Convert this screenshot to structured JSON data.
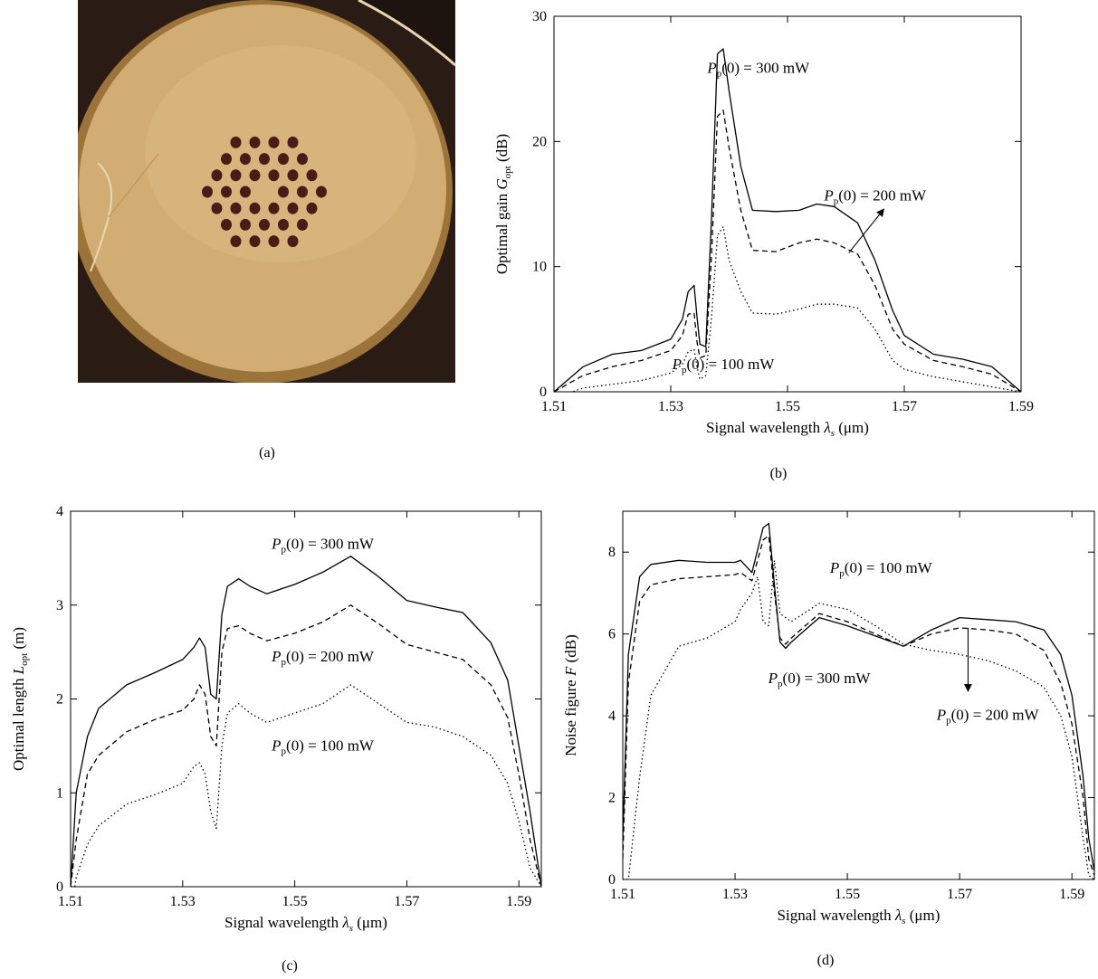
{
  "panels": {
    "a": {
      "label": "(a)"
    },
    "b": {
      "label": "(b)"
    },
    "c": {
      "label": "(c)"
    },
    "d": {
      "label": "(d)"
    }
  },
  "colors": {
    "fiber_face": "#d2ad73",
    "fiber_edge": "#9c7439",
    "background_dark": "#2a1c14",
    "holes": "#4a1c18"
  },
  "chart_data": [
    {
      "panel": "b",
      "type": "line",
      "xlabel": "Signal wavelength λs (μm)",
      "ylabel": "Optimal gain Gopt (dB)",
      "xlim": [
        1.51,
        1.59
      ],
      "ylim": [
        0,
        30
      ],
      "xticks": [
        1.51,
        1.53,
        1.55,
        1.57,
        1.59
      ],
      "xtick_labels": [
        "1.51",
        "1.53",
        "1.55",
        "1.57",
        "1.59"
      ],
      "yticks": [
        0,
        10,
        20,
        30
      ],
      "ytick_labels": [
        "0",
        "10",
        "20",
        "30"
      ],
      "grid": false,
      "series": [
        {
          "name": "Pp(0) = 300 mW",
          "style": "solid",
          "x": [
            1.51,
            1.515,
            1.52,
            1.525,
            1.53,
            1.532,
            1.533,
            1.534,
            1.5345,
            1.535,
            1.536,
            1.537,
            1.538,
            1.539,
            1.54,
            1.542,
            1.544,
            1.548,
            1.552,
            1.555,
            1.558,
            1.562,
            1.565,
            1.568,
            1.57,
            1.575,
            1.58,
            1.585,
            1.59
          ],
          "y": [
            0,
            2.0,
            3.0,
            3.3,
            4.2,
            5.8,
            8.0,
            8.5,
            6.0,
            3.8,
            3.6,
            14.0,
            27.0,
            27.4,
            24.0,
            18.0,
            14.5,
            14.4,
            14.5,
            15.0,
            14.8,
            13.5,
            10.5,
            6.5,
            4.5,
            3.0,
            2.6,
            2.0,
            0
          ]
        },
        {
          "name": "Pp(0) = 200 mW",
          "style": "dashed",
          "x": [
            1.51,
            1.515,
            1.52,
            1.525,
            1.53,
            1.532,
            1.533,
            1.534,
            1.5345,
            1.535,
            1.536,
            1.537,
            1.538,
            1.539,
            1.54,
            1.542,
            1.544,
            1.548,
            1.552,
            1.555,
            1.558,
            1.562,
            1.565,
            1.568,
            1.57,
            1.575,
            1.58,
            1.585,
            1.59
          ],
          "y": [
            0,
            1.3,
            2.0,
            2.5,
            3.3,
            4.5,
            6.2,
            6.3,
            4.0,
            2.7,
            2.9,
            11.0,
            22.0,
            22.5,
            19.5,
            14.5,
            11.3,
            11.2,
            11.9,
            12.2,
            11.9,
            11.0,
            8.5,
            5.0,
            3.8,
            2.5,
            2.0,
            1.4,
            0
          ]
        },
        {
          "name": "Pp(0) = 100 mW",
          "style": "dotted",
          "x": [
            1.51,
            1.515,
            1.52,
            1.525,
            1.53,
            1.532,
            1.533,
            1.534,
            1.5345,
            1.535,
            1.536,
            1.537,
            1.538,
            1.539,
            1.54,
            1.542,
            1.544,
            1.548,
            1.552,
            1.555,
            1.558,
            1.562,
            1.565,
            1.568,
            1.57,
            1.575,
            1.58,
            1.585,
            1.59
          ],
          "y": [
            -0.5,
            0.3,
            0.6,
            0.9,
            1.5,
            2.2,
            3.2,
            3.4,
            2.0,
            1.0,
            1.3,
            6.0,
            12.5,
            13.2,
            10.5,
            8.0,
            6.3,
            6.2,
            6.6,
            7.0,
            7.0,
            6.7,
            5.0,
            2.5,
            1.8,
            1.2,
            0.8,
            0.4,
            0
          ]
        }
      ],
      "annotations": [
        {
          "text": "Pp(0) = 300 mW",
          "x": 1.545,
          "y": 25.5
        },
        {
          "text": "Pp(0) = 200 mW",
          "x": 1.565,
          "y": 15.3
        },
        {
          "text": "Pp(0) = 100 mW",
          "x": 1.539,
          "y": 1.8
        }
      ]
    },
    {
      "panel": "c",
      "type": "line",
      "xlabel": "Signal wavelength λs (μm)",
      "ylabel": "Optimal length Lopt (m)",
      "xlim": [
        1.51,
        1.594
      ],
      "ylim": [
        0,
        4
      ],
      "xticks": [
        1.51,
        1.53,
        1.55,
        1.57,
        1.59
      ],
      "xtick_labels": [
        "1.51",
        "1.53",
        "1.55",
        "1.57",
        "1.59"
      ],
      "yticks": [
        0,
        1,
        2,
        3,
        4
      ],
      "ytick_labels": [
        "0",
        "1",
        "2",
        "3",
        "4"
      ],
      "grid": false,
      "series": [
        {
          "name": "Pp(0) = 300 mW",
          "style": "solid",
          "x": [
            1.51,
            1.511,
            1.513,
            1.515,
            1.52,
            1.525,
            1.53,
            1.532,
            1.533,
            1.534,
            1.535,
            1.536,
            1.537,
            1.538,
            1.54,
            1.542,
            1.545,
            1.55,
            1.555,
            1.56,
            1.565,
            1.57,
            1.575,
            1.58,
            1.585,
            1.588,
            1.59,
            1.592,
            1.594
          ],
          "y": [
            0,
            1.0,
            1.6,
            1.9,
            2.15,
            2.28,
            2.42,
            2.55,
            2.65,
            2.55,
            2.05,
            2.0,
            2.9,
            3.2,
            3.28,
            3.2,
            3.12,
            3.22,
            3.35,
            3.52,
            3.3,
            3.05,
            2.98,
            2.92,
            2.6,
            2.2,
            1.5,
            0.8,
            0
          ]
        },
        {
          "name": "Pp(0) = 200 mW",
          "style": "dashed",
          "x": [
            1.51,
            1.511,
            1.513,
            1.515,
            1.52,
            1.525,
            1.53,
            1.532,
            1.533,
            1.534,
            1.535,
            1.536,
            1.537,
            1.538,
            1.54,
            1.542,
            1.545,
            1.55,
            1.555,
            1.56,
            1.565,
            1.57,
            1.575,
            1.58,
            1.585,
            1.588,
            1.59,
            1.592,
            1.594
          ],
          "y": [
            0,
            0.5,
            1.2,
            1.4,
            1.65,
            1.78,
            1.88,
            2.0,
            2.15,
            2.05,
            1.6,
            1.5,
            2.5,
            2.75,
            2.78,
            2.7,
            2.62,
            2.7,
            2.82,
            3.0,
            2.8,
            2.58,
            2.5,
            2.42,
            2.15,
            1.8,
            1.2,
            0.5,
            0
          ]
        },
        {
          "name": "Pp(0) = 100 mW",
          "style": "dotted",
          "x": [
            1.51,
            1.511,
            1.513,
            1.515,
            1.52,
            1.525,
            1.53,
            1.532,
            1.533,
            1.534,
            1.535,
            1.536,
            1.537,
            1.538,
            1.54,
            1.542,
            1.545,
            1.55,
            1.555,
            1.56,
            1.565,
            1.57,
            1.575,
            1.58,
            1.585,
            1.588,
            1.59,
            1.592,
            1.594
          ],
          "y": [
            -0.3,
            0.1,
            0.45,
            0.65,
            0.88,
            0.98,
            1.1,
            1.28,
            1.32,
            1.2,
            0.8,
            0.62,
            1.5,
            1.85,
            1.95,
            1.85,
            1.75,
            1.85,
            1.95,
            2.15,
            1.95,
            1.75,
            1.7,
            1.6,
            1.4,
            1.1,
            0.7,
            0.2,
            0
          ]
        }
      ],
      "annotations": [
        {
          "text": "Pp(0) = 300 mW",
          "x": 1.555,
          "y": 3.6
        },
        {
          "text": "Pp(0) = 200 mW",
          "x": 1.555,
          "y": 2.4
        },
        {
          "text": "Pp(0) = 100 mW",
          "x": 1.555,
          "y": 1.45
        }
      ]
    },
    {
      "panel": "d",
      "type": "line",
      "xlabel": "Signal wavelength λs (μm)",
      "ylabel": "Noise figure F (dB)",
      "xlim": [
        1.51,
        1.594
      ],
      "ylim": [
        0,
        9
      ],
      "xticks": [
        1.51,
        1.53,
        1.55,
        1.57,
        1.59
      ],
      "xtick_labels": [
        "1.51",
        "1.53",
        "1.55",
        "1.57",
        "1.59"
      ],
      "yticks": [
        0,
        2,
        4,
        6,
        8
      ],
      "ytick_labels": [
        "0",
        "2",
        "4",
        "6",
        "8"
      ],
      "grid": false,
      "series": [
        {
          "name": "Pp(0) = 300 mW",
          "style": "solid",
          "x": [
            1.51,
            1.511,
            1.513,
            1.515,
            1.52,
            1.525,
            1.53,
            1.531,
            1.533,
            1.535,
            1.536,
            1.537,
            1.538,
            1.539,
            1.54,
            1.545,
            1.55,
            1.555,
            1.56,
            1.565,
            1.57,
            1.575,
            1.58,
            1.585,
            1.588,
            1.59,
            1.592,
            1.593,
            1.594
          ],
          "y": [
            1.0,
            5.5,
            7.4,
            7.7,
            7.8,
            7.75,
            7.75,
            7.8,
            7.5,
            8.6,
            8.7,
            7.2,
            5.8,
            5.65,
            5.8,
            6.4,
            6.2,
            5.95,
            5.7,
            6.1,
            6.4,
            6.35,
            6.3,
            6.1,
            5.5,
            4.5,
            2.5,
            1.0,
            0.2
          ]
        },
        {
          "name": "Pp(0) = 200 mW",
          "style": "dashed",
          "x": [
            1.51,
            1.511,
            1.513,
            1.515,
            1.52,
            1.525,
            1.53,
            1.531,
            1.533,
            1.535,
            1.536,
            1.537,
            1.538,
            1.539,
            1.54,
            1.545,
            1.55,
            1.555,
            1.56,
            1.565,
            1.57,
            1.575,
            1.58,
            1.585,
            1.588,
            1.59,
            1.592,
            1.593,
            1.594
          ],
          "y": [
            0.5,
            4.8,
            6.8,
            7.2,
            7.35,
            7.4,
            7.45,
            7.5,
            7.3,
            8.3,
            8.4,
            7.0,
            5.9,
            5.75,
            5.9,
            6.5,
            6.3,
            6.0,
            5.7,
            6.0,
            6.15,
            6.1,
            6.0,
            5.6,
            4.8,
            3.8,
            2.0,
            0.5,
            0.1
          ]
        },
        {
          "name": "Pp(0) = 100 mW",
          "style": "dotted",
          "x": [
            1.51,
            1.511,
            1.513,
            1.515,
            1.52,
            1.525,
            1.53,
            1.531,
            1.533,
            1.534,
            1.535,
            1.536,
            1.537,
            1.538,
            1.54,
            1.545,
            1.55,
            1.555,
            1.56,
            1.565,
            1.57,
            1.575,
            1.58,
            1.585,
            1.588,
            1.59,
            1.592,
            1.593,
            1.594
          ],
          "y": [
            0,
            0,
            2.5,
            4.5,
            5.7,
            5.9,
            6.3,
            6.6,
            7.0,
            7.4,
            6.3,
            6.2,
            7.8,
            6.5,
            6.3,
            6.75,
            6.6,
            6.2,
            5.75,
            5.6,
            5.5,
            5.35,
            5.1,
            4.7,
            4.0,
            3.0,
            1.0,
            0.1,
            0
          ]
        }
      ],
      "annotations": [
        {
          "text": "Pp(0) = 100 mW",
          "x": 1.556,
          "y": 7.5
        },
        {
          "text": "Pp(0) = 300 mW",
          "x": 1.545,
          "y": 4.8
        },
        {
          "text": "Pp(0) = 200 mW",
          "x": 1.575,
          "y": 3.9
        }
      ]
    }
  ]
}
